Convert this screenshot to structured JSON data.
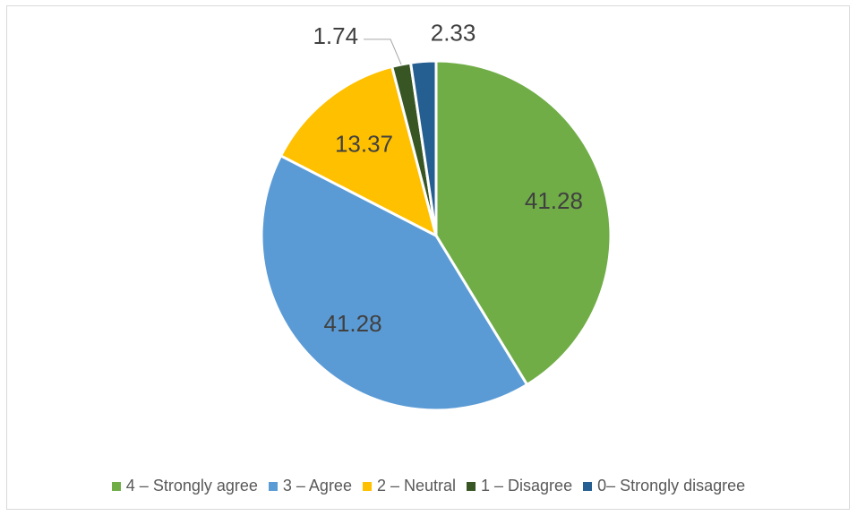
{
  "chart_data": {
    "type": "pie",
    "title": "",
    "categories": [
      "4 – Strongly agree",
      "3 – Agree",
      "2 – Neutral",
      "1 – Disagree",
      "0– Strongly disagree"
    ],
    "values": [
      41.28,
      41.28,
      13.37,
      1.74,
      2.33
    ],
    "data_labels": [
      "41.28",
      "41.28",
      "13.37",
      "1.74",
      "2.33"
    ],
    "colors": [
      "#70AD47",
      "#5B9BD5",
      "#FFC000",
      "#375623",
      "#255E91"
    ],
    "legend_position": "bottom",
    "start_angle": "12 o'clock",
    "direction": "clockwise"
  }
}
